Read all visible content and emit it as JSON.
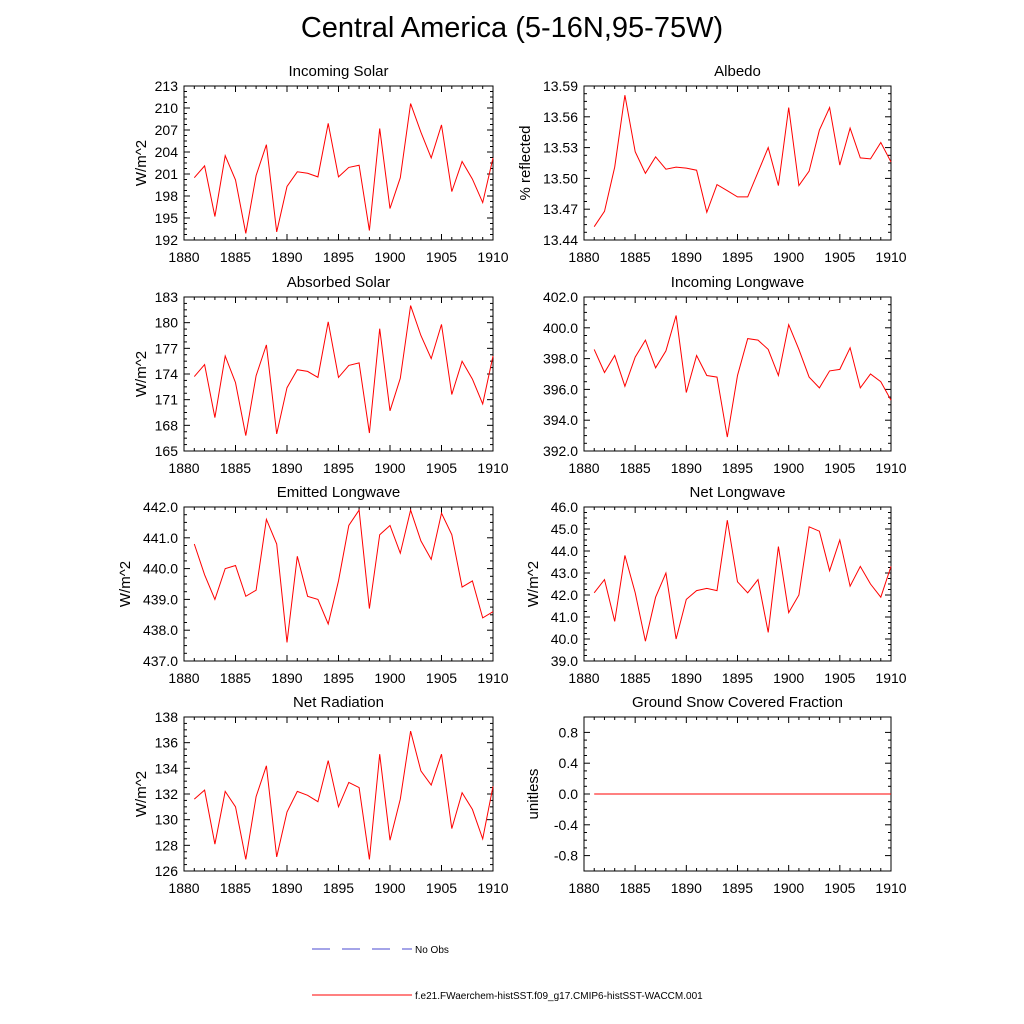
{
  "title": "Central America (5-16N,95-75W)",
  "colors": {
    "model": "#ff0000",
    "obs": "#4a4ad0",
    "axis": "#000000"
  },
  "legend": {
    "obs_label": "No Obs",
    "model_label": "f.e21.FWaerchem-histSST.f09_g17.CMIP6-histSST-WACCM.001"
  },
  "chart_data": [
    {
      "type": "line",
      "title": "Incoming Solar",
      "xlabel": "",
      "ylabel": "W/m^2",
      "xlim": [
        1880,
        1910
      ],
      "ylim": [
        192,
        213
      ],
      "xticks": [
        1880,
        1885,
        1890,
        1895,
        1900,
        1905,
        1910
      ],
      "xtick_labels": [
        "1880",
        "1885",
        "1890",
        "1895",
        "1900",
        "1905",
        "1910"
      ],
      "yticks": [
        192,
        195,
        198,
        201,
        204,
        207,
        210,
        213
      ],
      "ytick_labels": [
        "192",
        "195",
        "198",
        "201",
        "204",
        "207",
        "210",
        "213"
      ],
      "x": [
        1881,
        1882,
        1883,
        1884,
        1885,
        1886,
        1887,
        1888,
        1889,
        1890,
        1891,
        1892,
        1893,
        1894,
        1895,
        1896,
        1897,
        1898,
        1899,
        1900,
        1901,
        1902,
        1903,
        1904,
        1905,
        1906,
        1907,
        1908,
        1909,
        1910
      ],
      "series": [
        {
          "values": [
            200.5,
            202.1,
            195.2,
            203.5,
            200.2,
            192.9,
            200.8,
            205.0,
            193.1,
            199.3,
            201.3,
            201.1,
            200.6,
            207.9,
            200.6,
            201.9,
            202.2,
            193.3,
            207.2,
            196.3,
            200.5,
            210.6,
            206.7,
            203.2,
            207.7,
            198.6,
            202.7,
            200.3,
            197.1,
            203.2
          ]
        }
      ]
    },
    {
      "type": "line",
      "title": "Albedo",
      "xlabel": "",
      "ylabel": "% reflected",
      "xlim": [
        1880,
        1910
      ],
      "ylim": [
        13.44,
        13.59
      ],
      "xticks": [
        1880,
        1885,
        1890,
        1895,
        1900,
        1905,
        1910
      ],
      "xtick_labels": [
        "1880",
        "1885",
        "1890",
        "1895",
        "1900",
        "1905",
        "1910"
      ],
      "yticks": [
        13.44,
        13.47,
        13.5,
        13.53,
        13.56,
        13.59
      ],
      "ytick_labels": [
        "13.44",
        "13.47",
        "13.50",
        "13.53",
        "13.56",
        "13.59"
      ],
      "x": [
        1881,
        1882,
        1883,
        1884,
        1885,
        1886,
        1887,
        1888,
        1889,
        1890,
        1891,
        1892,
        1893,
        1894,
        1895,
        1896,
        1897,
        1898,
        1899,
        1900,
        1901,
        1902,
        1903,
        1904,
        1905,
        1906,
        1907,
        1908,
        1909,
        1910
      ],
      "series": [
        {
          "values": [
            13.453,
            13.468,
            13.511,
            13.581,
            13.526,
            13.505,
            13.521,
            13.509,
            13.511,
            13.51,
            13.508,
            13.467,
            13.494,
            13.488,
            13.482,
            13.482,
            13.506,
            13.53,
            13.493,
            13.569,
            13.493,
            13.507,
            13.547,
            13.569,
            13.513,
            13.549,
            13.52,
            13.519,
            13.535,
            13.516
          ]
        }
      ]
    },
    {
      "type": "line",
      "title": "Absorbed Solar",
      "xlabel": "",
      "ylabel": "W/m^2",
      "xlim": [
        1880,
        1910
      ],
      "ylim": [
        165,
        183
      ],
      "xticks": [
        1880,
        1885,
        1890,
        1895,
        1900,
        1905,
        1910
      ],
      "xtick_labels": [
        "1880",
        "1885",
        "1890",
        "1895",
        "1900",
        "1905",
        "1910"
      ],
      "yticks": [
        165,
        168,
        171,
        174,
        177,
        180,
        183
      ],
      "ytick_labels": [
        "165",
        "168",
        "171",
        "174",
        "177",
        "180",
        "183"
      ],
      "x": [
        1881,
        1882,
        1883,
        1884,
        1885,
        1886,
        1887,
        1888,
        1889,
        1890,
        1891,
        1892,
        1893,
        1894,
        1895,
        1896,
        1897,
        1898,
        1899,
        1900,
        1901,
        1902,
        1903,
        1904,
        1905,
        1906,
        1907,
        1908,
        1909,
        1910
      ],
      "series": [
        {
          "values": [
            173.7,
            175.1,
            168.9,
            176.1,
            173.0,
            166.8,
            173.8,
            177.4,
            167.0,
            172.4,
            174.5,
            174.3,
            173.6,
            180.1,
            173.6,
            175.0,
            175.3,
            167.1,
            179.3,
            169.7,
            173.5,
            182.0,
            178.5,
            175.8,
            179.8,
            171.6,
            175.5,
            173.4,
            170.5,
            176.1
          ]
        }
      ]
    },
    {
      "type": "line",
      "title": "Incoming Longwave",
      "xlabel": "",
      "ylabel": "",
      "xlim": [
        1880,
        1910
      ],
      "ylim": [
        392.0,
        402.0
      ],
      "xticks": [
        1880,
        1885,
        1890,
        1895,
        1900,
        1905,
        1910
      ],
      "xtick_labels": [
        "1880",
        "1885",
        "1890",
        "1895",
        "1900",
        "1905",
        "1910"
      ],
      "yticks": [
        392,
        394,
        396,
        398,
        400,
        402
      ],
      "ytick_labels": [
        "392.0",
        "394.0",
        "396.0",
        "398.0",
        "400.0",
        "402.0"
      ],
      "x": [
        1881,
        1882,
        1883,
        1884,
        1885,
        1886,
        1887,
        1888,
        1889,
        1890,
        1891,
        1892,
        1893,
        1894,
        1895,
        1896,
        1897,
        1898,
        1899,
        1900,
        1901,
        1902,
        1903,
        1904,
        1905,
        1906,
        1907,
        1908,
        1909,
        1910
      ],
      "series": [
        {
          "values": [
            398.6,
            397.1,
            398.2,
            396.2,
            398.1,
            399.2,
            397.4,
            398.5,
            400.8,
            395.8,
            398.2,
            396.9,
            396.8,
            392.9,
            396.9,
            399.3,
            399.2,
            398.6,
            396.9,
            400.2,
            398.6,
            396.8,
            396.1,
            397.2,
            397.3,
            398.7,
            396.1,
            397.0,
            396.5,
            395.3
          ]
        }
      ]
    },
    {
      "type": "line",
      "title": "Emitted Longwave",
      "xlabel": "",
      "ylabel": "W/m^2",
      "xlim": [
        1880,
        1910
      ],
      "ylim": [
        437.0,
        442.0
      ],
      "xticks": [
        1880,
        1885,
        1890,
        1895,
        1900,
        1905,
        1910
      ],
      "xtick_labels": [
        "1880",
        "1885",
        "1890",
        "1895",
        "1900",
        "1905",
        "1910"
      ],
      "yticks": [
        437,
        438,
        439,
        440,
        441,
        442
      ],
      "ytick_labels": [
        "437.0",
        "438.0",
        "439.0",
        "440.0",
        "441.0",
        "442.0"
      ],
      "x": [
        1881,
        1882,
        1883,
        1884,
        1885,
        1886,
        1887,
        1888,
        1889,
        1890,
        1891,
        1892,
        1893,
        1894,
        1895,
        1896,
        1897,
        1898,
        1899,
        1900,
        1901,
        1902,
        1903,
        1904,
        1905,
        1906,
        1907,
        1908,
        1909,
        1910
      ],
      "series": [
        {
          "values": [
            440.8,
            439.8,
            439.0,
            440.0,
            440.1,
            439.1,
            439.3,
            441.6,
            440.8,
            437.6,
            440.4,
            439.1,
            439.0,
            438.2,
            439.6,
            441.4,
            441.9,
            438.7,
            441.1,
            441.4,
            440.5,
            441.9,
            440.9,
            440.3,
            441.8,
            441.1,
            439.4,
            439.6,
            438.4,
            438.6
          ]
        }
      ]
    },
    {
      "type": "line",
      "title": "Net Longwave",
      "xlabel": "",
      "ylabel": "W/m^2",
      "xlim": [
        1880,
        1910
      ],
      "ylim": [
        39.0,
        46.0
      ],
      "xticks": [
        1880,
        1885,
        1890,
        1895,
        1900,
        1905,
        1910
      ],
      "xtick_labels": [
        "1880",
        "1885",
        "1890",
        "1895",
        "1900",
        "1905",
        "1910"
      ],
      "yticks": [
        39,
        40,
        41,
        42,
        43,
        44,
        45,
        46
      ],
      "ytick_labels": [
        "39.0",
        "40.0",
        "41.0",
        "42.0",
        "43.0",
        "44.0",
        "45.0",
        "46.0"
      ],
      "x": [
        1881,
        1882,
        1883,
        1884,
        1885,
        1886,
        1887,
        1888,
        1889,
        1890,
        1891,
        1892,
        1893,
        1894,
        1895,
        1896,
        1897,
        1898,
        1899,
        1900,
        1901,
        1902,
        1903,
        1904,
        1905,
        1906,
        1907,
        1908,
        1909,
        1910
      ],
      "series": [
        {
          "values": [
            42.1,
            42.7,
            40.8,
            43.8,
            42.1,
            39.9,
            41.9,
            43.0,
            40.0,
            41.8,
            42.2,
            42.3,
            42.2,
            45.4,
            42.6,
            42.1,
            42.7,
            40.3,
            44.2,
            41.2,
            42.0,
            45.1,
            44.9,
            43.1,
            44.5,
            42.4,
            43.3,
            42.5,
            41.9,
            43.3
          ]
        }
      ]
    },
    {
      "type": "line",
      "title": "Net Radiation",
      "xlabel": "",
      "ylabel": "W/m^2",
      "xlim": [
        1880,
        1910
      ],
      "ylim": [
        126,
        138
      ],
      "xticks": [
        1880,
        1885,
        1890,
        1895,
        1900,
        1905,
        1910
      ],
      "xtick_labels": [
        "1880",
        "1885",
        "1890",
        "1895",
        "1900",
        "1905",
        "1910"
      ],
      "yticks": [
        126,
        128,
        130,
        132,
        134,
        136,
        138
      ],
      "ytick_labels": [
        "126",
        "128",
        "130",
        "132",
        "134",
        "136",
        "138"
      ],
      "x": [
        1881,
        1882,
        1883,
        1884,
        1885,
        1886,
        1887,
        1888,
        1889,
        1890,
        1891,
        1892,
        1893,
        1894,
        1895,
        1896,
        1897,
        1898,
        1899,
        1900,
        1901,
        1902,
        1903,
        1904,
        1905,
        1906,
        1907,
        1908,
        1909,
        1910
      ],
      "series": [
        {
          "values": [
            131.6,
            132.3,
            128.1,
            132.2,
            131.0,
            126.9,
            131.8,
            134.2,
            127.1,
            130.6,
            132.2,
            131.9,
            131.4,
            134.6,
            131.0,
            132.9,
            132.5,
            126.9,
            135.1,
            128.4,
            131.6,
            136.9,
            133.8,
            132.7,
            135.1,
            129.3,
            132.1,
            130.8,
            128.5,
            132.6
          ]
        }
      ]
    },
    {
      "type": "line",
      "title": "Ground Snow Covered Fraction",
      "xlabel": "",
      "ylabel": "unitless",
      "xlim": [
        1880,
        1910
      ],
      "ylim": [
        -1.0,
        1.0
      ],
      "xticks": [
        1880,
        1885,
        1890,
        1895,
        1900,
        1905,
        1910
      ],
      "xtick_labels": [
        "1880",
        "1885",
        "1890",
        "1895",
        "1900",
        "1905",
        "1910"
      ],
      "yticks": [
        -0.8,
        -0.4,
        0.0,
        0.4,
        0.8
      ],
      "ytick_labels": [
        "-0.8",
        "-0.4",
        "0.0",
        "0.4",
        "0.8"
      ],
      "x": [
        1881,
        1910
      ],
      "series": [
        {
          "values": [
            0.0,
            0.0
          ]
        }
      ]
    }
  ]
}
